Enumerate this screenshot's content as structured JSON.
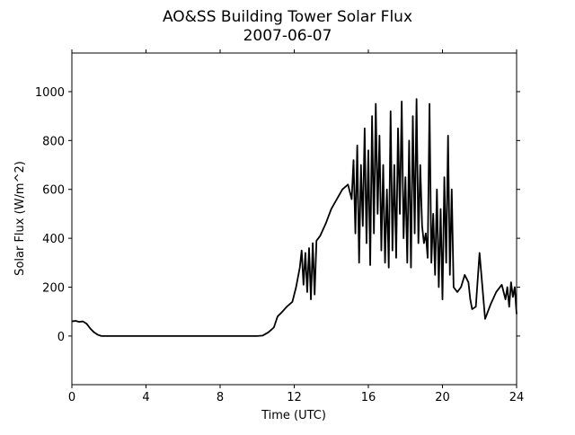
{
  "chart_data": {
    "type": "line",
    "title": "AO&SS Building Tower Solar Flux",
    "subtitle": "2007-06-07",
    "x_label": "Time (UTC)",
    "y_label": "Solar Flux (W/m^2)",
    "x": [
      0,
      0.2,
      0.4,
      0.6,
      0.8,
      1.0,
      1.2,
      1.4,
      1.6,
      2,
      4,
      6,
      8,
      10,
      10.3,
      10.6,
      10.9,
      11.1,
      11.3,
      11.6,
      11.9,
      12.1,
      12.3,
      12.4,
      12.5,
      12.6,
      12.7,
      12.8,
      12.9,
      13.0,
      13.1,
      13.2,
      13.4,
      13.7,
      14.0,
      14.3,
      14.6,
      14.9,
      15.1,
      15.2,
      15.3,
      15.4,
      15.5,
      15.6,
      15.7,
      15.8,
      15.9,
      16.0,
      16.1,
      16.2,
      16.3,
      16.4,
      16.5,
      16.6,
      16.7,
      16.8,
      16.9,
      17.0,
      17.1,
      17.2,
      17.3,
      17.4,
      17.5,
      17.6,
      17.7,
      17.8,
      17.9,
      18.0,
      18.1,
      18.2,
      18.3,
      18.4,
      18.5,
      18.6,
      18.7,
      18.8,
      18.9,
      19.0,
      19.1,
      19.2,
      19.3,
      19.4,
      19.5,
      19.6,
      19.7,
      19.8,
      19.9,
      20.0,
      20.1,
      20.2,
      20.3,
      20.4,
      20.5,
      20.6,
      20.8,
      21.0,
      21.2,
      21.4,
      21.5,
      21.6,
      21.8,
      22.0,
      22.3,
      22.6,
      22.9,
      23.2,
      23.4,
      23.5,
      23.6,
      23.7,
      23.8,
      23.9,
      24.0
    ],
    "series": [
      {
        "name": "Solar Flux",
        "color": "#000000",
        "values": [
          60,
          62,
          58,
          60,
          50,
          30,
          15,
          5,
          0,
          0,
          0,
          0,
          0,
          0,
          2,
          15,
          35,
          80,
          95,
          120,
          140,
          200,
          280,
          350,
          210,
          340,
          180,
          360,
          150,
          380,
          170,
          390,
          410,
          460,
          520,
          560,
          600,
          620,
          560,
          720,
          420,
          780,
          300,
          700,
          450,
          850,
          380,
          760,
          290,
          900,
          420,
          950,
          500,
          820,
          350,
          700,
          300,
          600,
          280,
          920,
          350,
          700,
          320,
          850,
          500,
          960,
          400,
          650,
          300,
          800,
          280,
          900,
          420,
          970,
          380,
          700,
          450,
          380,
          420,
          320,
          950,
          300,
          500,
          250,
          600,
          200,
          520,
          150,
          650,
          300,
          820,
          250,
          600,
          200,
          180,
          200,
          250,
          220,
          150,
          110,
          120,
          340,
          70,
          130,
          180,
          210,
          150,
          200,
          120,
          220,
          160,
          200,
          90
        ]
      }
    ],
    "xlim": [
      0,
      24
    ],
    "xticks": [
      0,
      4,
      8,
      12,
      16,
      20,
      24
    ],
    "ylim": [
      -199,
      1158
    ],
    "yticks": [
      0,
      200,
      400,
      600,
      800,
      1000
    ],
    "grid": false
  }
}
